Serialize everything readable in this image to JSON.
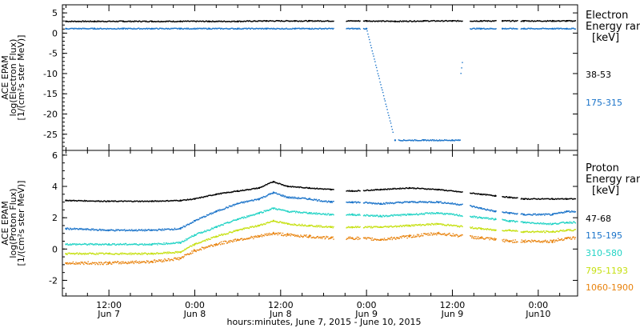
{
  "figure_title": "hours:minutes, June  7, 2015 - June 10, 2015",
  "time_ticks": [
    {
      "label": "12:00",
      "sub": "Jun 7",
      "t": 12
    },
    {
      "label": "0:00",
      "sub": "Jun 8",
      "t": 24
    },
    {
      "label": "12:00",
      "sub": "Jun 8",
      "t": 36
    },
    {
      "label": "0:00",
      "sub": "Jun 9",
      "t": 48
    },
    {
      "label": "12:00",
      "sub": "Jun 9",
      "t": 60
    },
    {
      "label": "0:00",
      "sub": "Jun10",
      "t": 72
    }
  ],
  "chart_data": [
    {
      "type": "scatter",
      "panel": "electron",
      "ylabel": [
        "ACE EPAM",
        "log(Electron Flux)",
        "[1/(cm²s ster MeV)]"
      ],
      "ylim": [
        -29,
        7
      ],
      "yticks": [
        5,
        0,
        -5,
        -10,
        -15,
        -20,
        -25
      ],
      "xlim": [
        5.5,
        77.5
      ],
      "legend_title": [
        "Electron",
        "Energy ranges",
        "[keV]"
      ],
      "series": [
        {
          "name": "38-53",
          "color": "#000000",
          "x": [
            6,
            10,
            14,
            18,
            22,
            26,
            30,
            34,
            38,
            40,
            44,
            48,
            52,
            56,
            60,
            62,
            64,
            67,
            70,
            74,
            76
          ],
          "y": [
            2.9,
            2.9,
            2.9,
            2.9,
            2.9,
            2.9,
            2.9,
            3.0,
            3.0,
            3.0,
            3.0,
            3.0,
            2.9,
            3.0,
            3.0,
            3.0,
            3.0,
            3.0,
            3.0,
            3.0,
            3.0
          ]
        },
        {
          "name": "175-315",
          "color": "#1a73c9",
          "x": [
            6,
            10,
            14,
            18,
            22,
            26,
            30,
            34,
            38,
            40,
            44,
            48,
            52,
            56,
            60,
            62,
            64,
            67,
            70,
            74,
            76
          ],
          "y": [
            1.1,
            1.1,
            1.1,
            1.1,
            1.1,
            1.1,
            1.1,
            1.1,
            1.1,
            1.1,
            1.1,
            1.1,
            -26.5,
            -26.5,
            -26.5,
            1.1,
            1.1,
            1.1,
            1.1,
            1.1,
            1.1
          ]
        }
      ]
    },
    {
      "type": "scatter",
      "panel": "proton",
      "ylabel": [
        "ACE EPAM",
        "log(Proton Flux)",
        "[1/(cm²s ster MeV)]"
      ],
      "ylim": [
        -3,
        6.3
      ],
      "yticks": [
        6,
        4,
        2,
        0,
        -2
      ],
      "xlim": [
        5.5,
        77.5
      ],
      "legend_title": [
        "Proton",
        "Energy ranges",
        "[keV]"
      ],
      "series": [
        {
          "name": "47-68",
          "color": "#000000",
          "x": [
            6,
            12,
            18,
            22,
            24,
            27,
            30,
            33,
            35,
            37,
            40,
            43,
            46,
            50,
            54,
            58,
            62,
            64,
            66,
            68,
            70,
            74,
            76
          ],
          "y": [
            3.1,
            3.05,
            3.05,
            3.1,
            3.2,
            3.5,
            3.7,
            3.9,
            4.3,
            4.0,
            3.9,
            3.8,
            3.7,
            3.8,
            3.9,
            3.8,
            3.6,
            3.5,
            3.4,
            3.3,
            3.2,
            3.2,
            3.2
          ]
        },
        {
          "name": "115-195",
          "color": "#1a73c9",
          "x": [
            6,
            12,
            18,
            22,
            24,
            27,
            30,
            33,
            35,
            37,
            40,
            43,
            46,
            50,
            54,
            58,
            62,
            64,
            66,
            68,
            70,
            74,
            76
          ],
          "y": [
            1.3,
            1.2,
            1.2,
            1.3,
            1.8,
            2.4,
            2.9,
            3.2,
            3.6,
            3.3,
            3.2,
            3.0,
            3.0,
            2.9,
            3.0,
            3.0,
            2.8,
            2.6,
            2.4,
            2.3,
            2.2,
            2.2,
            2.4
          ]
        },
        {
          "name": "310-580",
          "color": "#22d3c5",
          "x": [
            6,
            12,
            18,
            22,
            24,
            27,
            30,
            33,
            35,
            37,
            40,
            43,
            46,
            50,
            54,
            58,
            62,
            64,
            66,
            68,
            70,
            74,
            76
          ],
          "y": [
            0.3,
            0.3,
            0.3,
            0.4,
            0.9,
            1.4,
            1.9,
            2.3,
            2.6,
            2.4,
            2.3,
            2.2,
            2.2,
            2.1,
            2.2,
            2.3,
            2.1,
            2.0,
            1.9,
            1.8,
            1.7,
            1.6,
            1.7
          ]
        },
        {
          "name": "795-1193",
          "color": "#c6e011",
          "x": [
            6,
            12,
            18,
            22,
            24,
            27,
            30,
            33,
            35,
            37,
            40,
            43,
            46,
            50,
            54,
            58,
            62,
            64,
            66,
            68,
            70,
            74,
            76
          ],
          "y": [
            -0.3,
            -0.3,
            -0.3,
            -0.2,
            0.3,
            0.8,
            1.2,
            1.5,
            1.8,
            1.6,
            1.5,
            1.4,
            1.4,
            1.4,
            1.5,
            1.6,
            1.4,
            1.3,
            1.2,
            1.2,
            1.1,
            1.1,
            1.2
          ]
        },
        {
          "name": "1060-1900",
          "color": "#e8820c",
          "x": [
            6,
            12,
            18,
            22,
            24,
            27,
            30,
            33,
            35,
            37,
            40,
            43,
            46,
            50,
            54,
            58,
            62,
            64,
            66,
            68,
            70,
            74,
            76
          ],
          "y": [
            -0.9,
            -0.9,
            -0.8,
            -0.6,
            -0.1,
            0.3,
            0.6,
            0.8,
            1.0,
            0.9,
            0.8,
            0.7,
            0.7,
            0.6,
            0.8,
            1.0,
            0.8,
            0.7,
            0.6,
            0.5,
            0.5,
            0.5,
            0.7
          ]
        }
      ]
    }
  ]
}
